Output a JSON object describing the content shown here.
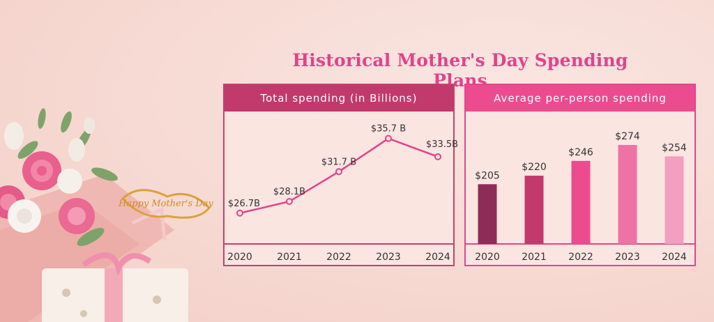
{
  "title": "Historical Mother's Day Spending Plans",
  "decor": {
    "topper_text": "Happy Mother's Day"
  },
  "chart_data": [
    {
      "type": "line",
      "title": "Total spending (in Billions)",
      "categories": [
        "2020",
        "2021",
        "2022",
        "2023",
        "2024"
      ],
      "values": [
        26.7,
        28.1,
        31.7,
        35.7,
        33.5
      ],
      "data_labels": [
        "$26.7B",
        "$28.1B",
        "$31.7 B",
        "$35.7 B",
        "$33.5B"
      ],
      "color": "#e0438c",
      "grid": false
    },
    {
      "type": "bar",
      "title": "Average per-person spending",
      "categories": [
        "2020",
        "2021",
        "2022",
        "2023",
        "2024"
      ],
      "values": [
        205,
        220,
        246,
        274,
        254
      ],
      "data_labels": [
        "$205",
        "$220",
        "$246",
        "$274",
        "$254"
      ],
      "colors": [
        "#8e2c58",
        "#c23a6c",
        "#ec4c8f",
        "#ef72a4",
        "#f3a0c0"
      ],
      "grid": false
    }
  ]
}
